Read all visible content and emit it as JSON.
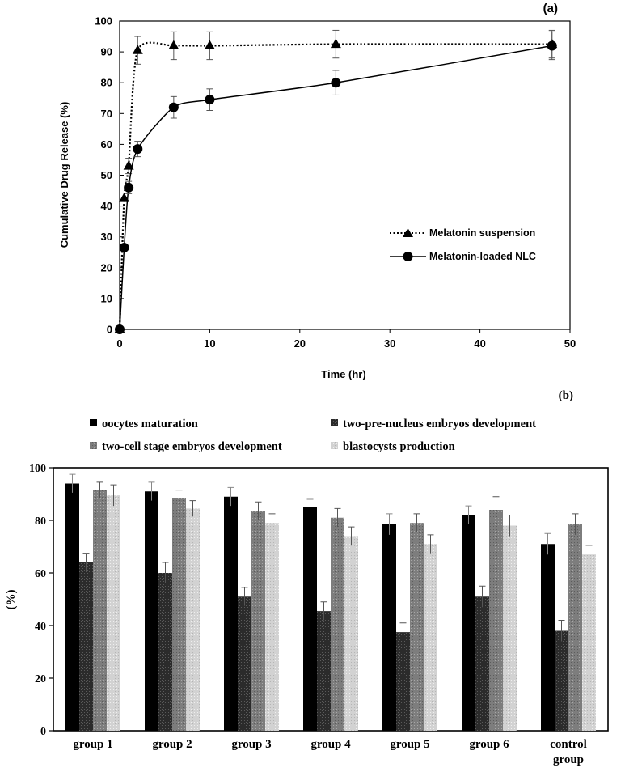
{
  "chart_data": [
    {
      "type": "line",
      "panel_label": "(a)",
      "xlabel": "Time (hr)",
      "ylabel": "Cumulative Drug Release (%)",
      "xlim": [
        0,
        50
      ],
      "ylim": [
        0,
        100
      ],
      "x_ticks": [
        0,
        10,
        20,
        30,
        40,
        50
      ],
      "y_ticks": [
        0,
        10,
        20,
        30,
        40,
        50,
        60,
        70,
        80,
        90,
        100
      ],
      "grid": false,
      "legend_position": "right",
      "series": [
        {
          "name": "Melatonin suspension",
          "marker": "triangle",
          "line_style": "dotted",
          "x": [
            0,
            0.5,
            1,
            2,
            6,
            10,
            24,
            48
          ],
          "y": [
            0,
            42.5,
            53,
            90.5,
            92,
            92,
            92.5,
            92.5
          ],
          "error": [
            0,
            0,
            2.5,
            4.5,
            4.5,
            4.5,
            4.5,
            4.5
          ]
        },
        {
          "name": "Melatonin-loaded NLC",
          "marker": "circle",
          "line_style": "solid",
          "x": [
            0,
            0.5,
            1,
            2,
            6,
            10,
            24,
            48
          ],
          "y": [
            0,
            26.5,
            46,
            58.5,
            72,
            74.5,
            80,
            92
          ],
          "error": [
            0,
            0,
            2,
            2.5,
            3.5,
            3.5,
            4,
            4.5
          ]
        }
      ]
    },
    {
      "type": "bar",
      "panel_label": "(b)",
      "xlabel": "",
      "ylabel": "(%)",
      "ylim": [
        0,
        100
      ],
      "y_ticks": [
        0,
        20,
        40,
        60,
        80,
        100
      ],
      "grid": false,
      "legend_position": "top",
      "categories": [
        "group 1",
        "group 2",
        "group 3",
        "group 4",
        "group 5",
        "group 6",
        "control group"
      ],
      "series": [
        {
          "name": "oocytes maturation",
          "color": "#000000",
          "pattern": "solid",
          "values": [
            94,
            91,
            89,
            85,
            78.5,
            82,
            71
          ],
          "error": [
            3.5,
            3.5,
            3.5,
            3,
            4,
            3.5,
            4
          ]
        },
        {
          "name": "two-pre-nucleus embryos development",
          "color": "#333333",
          "pattern": "dark-stipple",
          "values": [
            64,
            60,
            51,
            45.5,
            37.5,
            51,
            38
          ],
          "error": [
            3.5,
            4,
            3.5,
            3.5,
            3.5,
            4,
            4
          ]
        },
        {
          "name": "two-cell stage embryos development",
          "color": "#7a7a7a",
          "pattern": "grey-stipple",
          "values": [
            91.5,
            88.5,
            83.5,
            81,
            79,
            84,
            78.5
          ],
          "error": [
            3,
            3,
            3.5,
            3.5,
            3.5,
            5,
            4
          ]
        },
        {
          "name": "blastocysts production",
          "color": "#cfcfcf",
          "pattern": "light-stipple",
          "values": [
            89.5,
            84.5,
            79,
            74,
            71,
            78,
            67
          ],
          "error": [
            4,
            3,
            3.5,
            3.5,
            3.5,
            4,
            3.5
          ]
        }
      ]
    }
  ]
}
